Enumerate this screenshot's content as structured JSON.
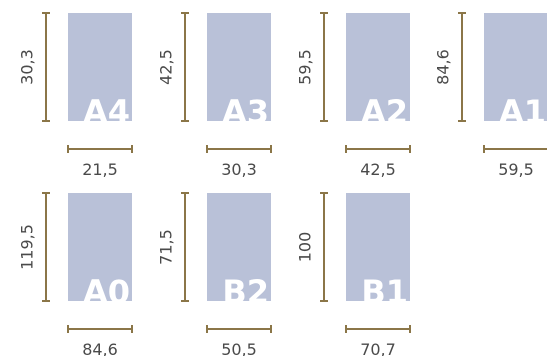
{
  "colors": {
    "paper": "#b9c1d8",
    "label": "#ffffff",
    "dimension_line": "#8b7648",
    "dimension_text": "#4a4a4a"
  },
  "papers": [
    {
      "label": "A4",
      "width": "21,5",
      "height": "30,3"
    },
    {
      "label": "A3",
      "width": "30,3",
      "height": "42,5"
    },
    {
      "label": "A2",
      "width": "42,5",
      "height": "59,5"
    },
    {
      "label": "A1",
      "width": "59,5",
      "height": "84,6"
    },
    {
      "label": "A0",
      "width": "84,6",
      "height": "119,5"
    },
    {
      "label": "B2",
      "width": "50,5",
      "height": "71,5"
    },
    {
      "label": "B1",
      "width": "70,7",
      "height": "100"
    }
  ]
}
